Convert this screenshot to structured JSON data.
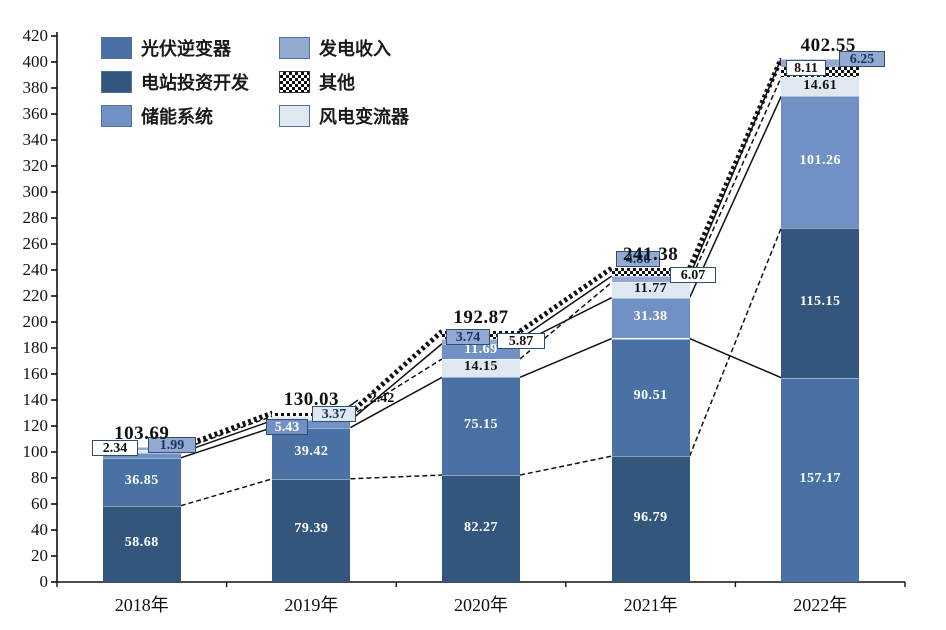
{
  "chart_data": {
    "type": "bar",
    "stacked": true,
    "title": "",
    "x_categories": [
      "2018年",
      "2019年",
      "2020年",
      "2021年",
      "2022年"
    ],
    "y_axis": {
      "min": 0,
      "max": 420,
      "step": 20,
      "tick_labels": [
        "0",
        "20",
        "40",
        "60",
        "80",
        "100",
        "120",
        "140",
        "160",
        "180",
        "200",
        "220",
        "240",
        "260",
        "280",
        "300",
        "320",
        "340",
        "360",
        "380",
        "400",
        "420"
      ]
    },
    "grid": "off",
    "legend_position": "top-left",
    "legend": {
      "items": [
        {
          "label": "光伏逆变器",
          "color": "#4971a3"
        },
        {
          "label": "电站投资开发",
          "color": "#33567d"
        },
        {
          "label": "储能系统",
          "color": "#7191c4"
        },
        {
          "label": "发电收入",
          "color": "#93a9d2"
        },
        {
          "label": "其他",
          "color": "checker"
        },
        {
          "label": "风电变流器",
          "color": "#dfe7f1"
        }
      ]
    },
    "series_colors": {
      "光伏逆变器": "#4971a3",
      "电站投资开发": "#33567d",
      "储能系统": "#7191c4",
      "发电收入": "#93a9d2",
      "其他": "checker",
      "风电变流器": "#dfe7f1"
    },
    "bars": [
      {
        "category": "2018年",
        "total_label": "103.69",
        "segments": [
          {
            "series": "电站投资开发",
            "value": 58.68,
            "label": "58.68"
          },
          {
            "series": "光伏逆变器",
            "value": 36.85,
            "label": "36.85"
          },
          {
            "series": "储能系统",
            "value": 3.83,
            "label": null
          },
          {
            "series": "风电变流器",
            "value": 2.34,
            "label": "2.34"
          },
          {
            "series": "发电收入",
            "value": 1.99,
            "label": "1.99"
          }
        ]
      },
      {
        "category": "2019年",
        "total_label": "130.03",
        "segments": [
          {
            "series": "电站投资开发",
            "value": 79.39,
            "label": "79.39"
          },
          {
            "series": "光伏逆变器",
            "value": 39.42,
            "label": "39.42"
          },
          {
            "series": "储能系统",
            "value": 5.43,
            "label": "5.43"
          },
          {
            "series": "风电变流器",
            "value": 3.37,
            "label": "3.37"
          },
          {
            "series": "其他",
            "value": 2.42,
            "label": "2.42"
          }
        ]
      },
      {
        "category": "2020年",
        "total_label": "192.87",
        "segments": [
          {
            "series": "电站投资开发",
            "value": 82.27,
            "label": "82.27"
          },
          {
            "series": "光伏逆变器",
            "value": 75.15,
            "label": "75.15"
          },
          {
            "series": "风电变流器",
            "value": 14.15,
            "label": "14.15"
          },
          {
            "series": "储能系统",
            "value": 11.69,
            "label": "11.69"
          },
          {
            "series": "发电收入",
            "value": 3.74,
            "label": "3.74"
          },
          {
            "series": "其他",
            "value": 5.87,
            "label": "5.87"
          }
        ]
      },
      {
        "category": "2021年",
        "total_label": "241.38",
        "segments": [
          {
            "series": "电站投资开发",
            "value": 96.79,
            "label": "96.79"
          },
          {
            "series": "光伏逆变器",
            "value": 90.51,
            "label": "90.51"
          },
          {
            "series": "储能系统",
            "value": 31.38,
            "label": "31.38"
          },
          {
            "series": "风电变流器",
            "value": 11.77,
            "label": "11.77"
          },
          {
            "series": "发电收入",
            "value": 4.86,
            "label": "4.86"
          },
          {
            "series": "其他",
            "value": 6.07,
            "label": "6.07"
          }
        ]
      },
      {
        "category": "2022年",
        "total_label": "402.55",
        "segments": [
          {
            "series": "光伏逆变器",
            "value": 157.17,
            "label": "157.17"
          },
          {
            "series": "电站投资开发",
            "value": 115.15,
            "label": "115.15"
          },
          {
            "series": "储能系统",
            "value": 101.26,
            "label": "101.26"
          },
          {
            "series": "风电变流器",
            "value": 14.61,
            "label": "14.61"
          },
          {
            "series": "其他",
            "value": 8.11,
            "label": "8.11"
          },
          {
            "series": "发电收入",
            "value": 6.25,
            "label": "6.25"
          }
        ]
      }
    ],
    "connector_lines": [
      {
        "series": "电站投资开发",
        "style": "dashed"
      },
      {
        "series": "光伏逆变器",
        "style": "solid"
      },
      {
        "series": "储能系统",
        "style": "solid"
      },
      {
        "series": "风电变流器",
        "style": "dashed"
      },
      {
        "series": "发电收入",
        "style": "solid"
      },
      {
        "series": "__total__",
        "style": "thick-dotted"
      }
    ],
    "colors": {
      "axis": "#111111",
      "connector": "#111111",
      "chip_border": "#2f4e74",
      "chip_dark_text": "#17355c"
    }
  }
}
